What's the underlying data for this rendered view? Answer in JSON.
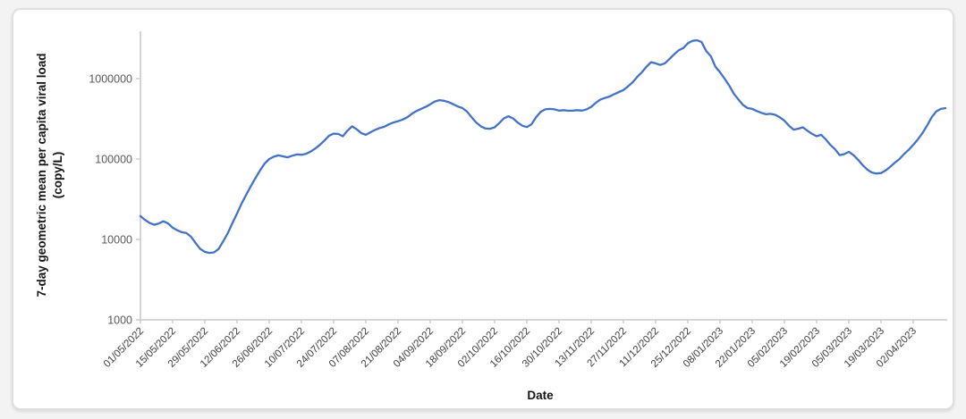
{
  "page": {
    "background_color": "#f3f3f3",
    "card_background": "#ffffff",
    "card_border_color": "#dfdfdf"
  },
  "chart_data": {
    "type": "line",
    "title": "",
    "xlabel": "Date",
    "ylabel": "7-day geometric mean per capita viral load (copy/L)",
    "ylabel_lines": [
      "7-day geometric mean per capita viral load",
      "(copy/L)"
    ],
    "y_scale": "log",
    "ylim": [
      1000,
      3900000
    ],
    "y_ticks": [
      1000000,
      100000,
      10000,
      1000
    ],
    "y_tick_labels": [
      "1000000",
      "100000",
      "10000",
      "1000"
    ],
    "x_tick_step_days": 14,
    "x_tick_labels": [
      "01/05/2022",
      "15/05/2022",
      "29/05/2022",
      "12/06/2022",
      "26/06/2022",
      "10/07/2022",
      "24/07/2022",
      "07/08/2022",
      "21/08/2022",
      "04/09/2022",
      "18/09/2022",
      "02/10/2022",
      "16/10/2022",
      "30/10/2022",
      "13/11/2022",
      "27/11/2022",
      "11/12/2022",
      "25/12/2022",
      "08/01/2023",
      "22/01/2023",
      "05/02/2023",
      "19/02/2023",
      "05/03/2023",
      "19/03/2023",
      "02/04/2023"
    ],
    "grid": "off",
    "legend": "none",
    "axis_color": "#c9c9c9",
    "tick_label_color": "#404040",
    "y_tick_label_color": "#595959",
    "axis_title_color": "#141414",
    "series": [
      {
        "name": "7-day geometric mean per capita viral load",
        "color": "#4472C4",
        "start_date": "01/05/2022",
        "step_days": 2,
        "values": [
          19500,
          17500,
          16000,
          15200,
          15800,
          16800,
          15800,
          14000,
          13000,
          12300,
          12000,
          10800,
          9000,
          7600,
          7000,
          6800,
          6900,
          7600,
          9500,
          12000,
          16000,
          21000,
          28000,
          36000,
          46000,
          58000,
          72000,
          88000,
          100000,
          107000,
          111000,
          108000,
          105000,
          110000,
          114000,
          113000,
          116000,
          124000,
          135000,
          150000,
          170000,
          195000,
          207000,
          205000,
          192000,
          225000,
          255000,
          235000,
          210000,
          200000,
          215000,
          230000,
          243000,
          252000,
          270000,
          285000,
          295000,
          310000,
          330000,
          365000,
          395000,
          420000,
          445000,
          480000,
          520000,
          540000,
          530000,
          510000,
          480000,
          450000,
          430000,
          390000,
          330000,
          285000,
          255000,
          240000,
          238000,
          248000,
          280000,
          320000,
          340000,
          320000,
          285000,
          260000,
          250000,
          270000,
          330000,
          385000,
          415000,
          420000,
          415000,
          400000,
          405000,
          398000,
          400000,
          405000,
          400000,
          415000,
          445000,
          500000,
          550000,
          575000,
          600000,
          640000,
          680000,
          720000,
          800000,
          900000,
          1050000,
          1200000,
          1400000,
          1600000,
          1550000,
          1480000,
          1550000,
          1750000,
          2000000,
          2250000,
          2400000,
          2750000,
          2950000,
          3000000,
          2850000,
          2200000,
          1900000,
          1400000,
          1200000,
          1000000,
          820000,
          650000,
          550000,
          470000,
          430000,
          420000,
          395000,
          375000,
          360000,
          365000,
          355000,
          330000,
          300000,
          260000,
          232000,
          238000,
          248000,
          225000,
          205000,
          192000,
          200000,
          175000,
          150000,
          132000,
          112000,
          115000,
          123000,
          112000,
          98000,
          84000,
          74000,
          68000,
          66000,
          67000,
          72000,
          80000,
          90000,
          100000,
          115000,
          130000,
          150000,
          175000,
          210000,
          260000,
          330000,
          390000,
          420000,
          430000
        ]
      }
    ]
  }
}
